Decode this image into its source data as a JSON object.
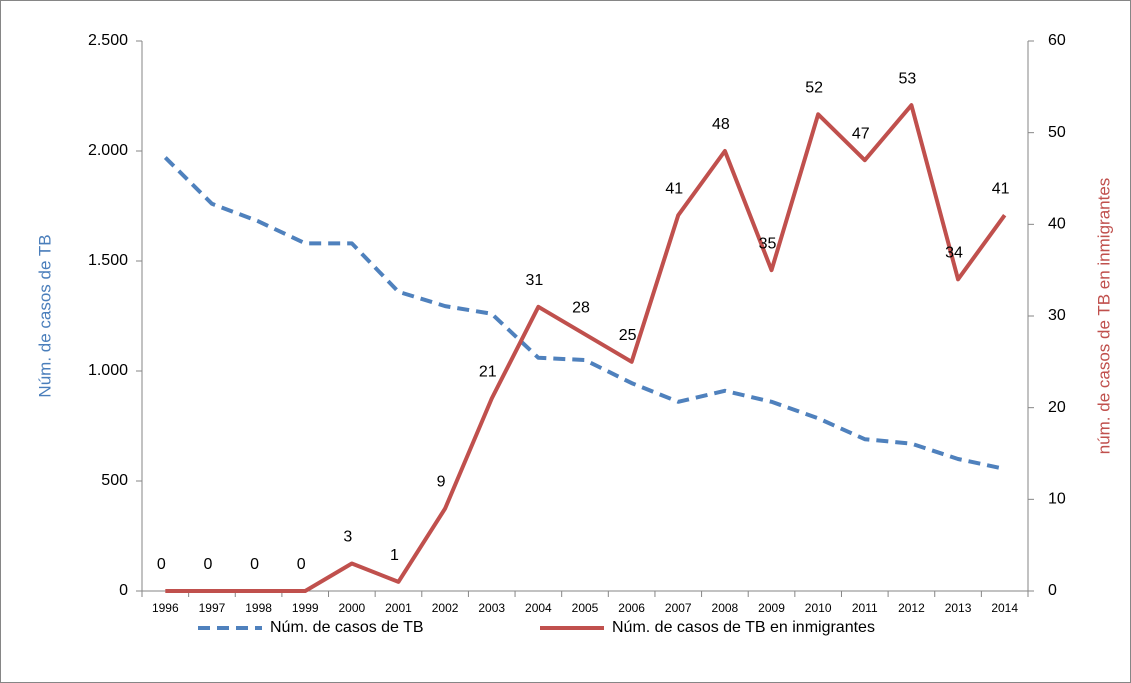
{
  "chart_data": {
    "type": "line",
    "categories": [
      "1996",
      "1997",
      "1998",
      "1999",
      "2000",
      "2001",
      "2002",
      "2003",
      "2004",
      "2005",
      "2006",
      "2007",
      "2008",
      "2009",
      "2010",
      "2011",
      "2012",
      "2013",
      "2014"
    ],
    "ylabel": "Núm. de casos de TB",
    "y2label": "núm. de casos de TB en inmigrantes",
    "ylim": [
      0,
      2500
    ],
    "yticks": [
      0,
      500,
      {
        "value": 1000,
        "label": "1.000"
      },
      {
        "value": 1500,
        "label": "1.500"
      },
      {
        "value": 2000,
        "label": "2.000"
      },
      {
        "value": 2500,
        "label": "2.500"
      }
    ],
    "y2lim": [
      0,
      60
    ],
    "y2ticks": [
      0,
      10,
      20,
      30,
      40,
      50,
      60
    ],
    "series": [
      {
        "name": "Núm. de casos de TB",
        "color": "#4f81bd",
        "dash": true,
        "values": [
          1970,
          1760,
          1680,
          1580,
          1580,
          1360,
          1295,
          1260,
          1060,
          1050,
          945,
          860,
          910,
          860,
          785,
          690,
          670,
          600,
          555
        ]
      },
      {
        "name": "Núm. de casos de TB en inmigrantes",
        "color": "#c0504d",
        "axis": "y2",
        "labels": true,
        "values": [
          0,
          0,
          0,
          0,
          3,
          1,
          9,
          21,
          31,
          28,
          25,
          41,
          48,
          35,
          52,
          47,
          53,
          34,
          41
        ]
      }
    ]
  }
}
